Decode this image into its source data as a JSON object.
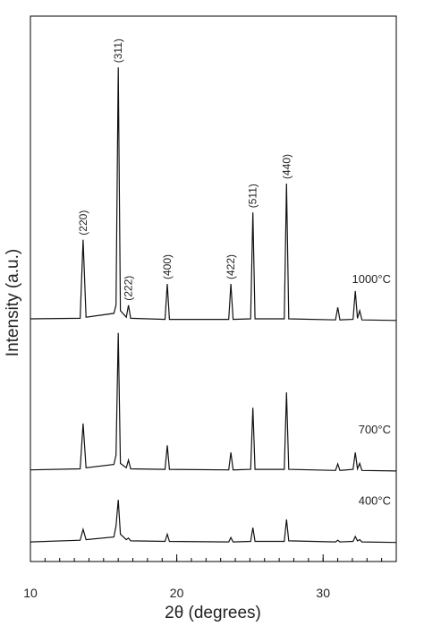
{
  "chart_data": {
    "type": "line",
    "x_label": "2θ (degrees)",
    "y_label": "Intensity (a.u.)",
    "xlim": [
      10,
      35
    ],
    "xticks": [
      10,
      20,
      30
    ],
    "ylim": [
      0,
      100
    ],
    "x": [
      10,
      13.4,
      13.6,
      13.8,
      15.7,
      15.85,
      16.0,
      16.15,
      16.55,
      16.7,
      16.85,
      19.2,
      19.35,
      19.5,
      23.55,
      23.7,
      23.85,
      25.05,
      25.2,
      25.35,
      27.35,
      27.5,
      27.65,
      30.85,
      31.0,
      31.15,
      32.05,
      32.2,
      32.35,
      32.5,
      32.65,
      35
    ],
    "series": [
      {
        "name": "1000°C",
        "color": "#111111",
        "values": [
          44.5,
          44.6,
          59,
          44.8,
          45.5,
          47,
          90.6,
          46,
          44.8,
          47,
          44.6,
          44.4,
          50.9,
          44.4,
          44.4,
          50.9,
          44.4,
          44.5,
          64,
          44.5,
          44.5,
          69.3,
          44.5,
          44.3,
          46.6,
          44.3,
          44.4,
          49.6,
          44.6,
          46,
          44.3,
          44.2
        ]
      },
      {
        "name": "700°C",
        "color": "#111111",
        "values": [
          16.8,
          17,
          25.3,
          17.2,
          17.8,
          19.5,
          41.9,
          18,
          17.2,
          18.6,
          17,
          16.9,
          21.3,
          16.9,
          16.8,
          20,
          16.8,
          16.9,
          28.2,
          16.9,
          16.9,
          31,
          16.9,
          16.7,
          17.9,
          16.7,
          16.9,
          20,
          17,
          18,
          16.7,
          16.6
        ]
      },
      {
        "name": "400°C",
        "color": "#111111",
        "values": [
          3.6,
          3.9,
          5.9,
          4.0,
          4.5,
          6.5,
          11.3,
          5.0,
          4.0,
          4.3,
          3.8,
          3.7,
          5.0,
          3.7,
          3.6,
          4.4,
          3.6,
          3.7,
          6.2,
          3.7,
          3.7,
          7.7,
          3.8,
          3.6,
          3.9,
          3.6,
          3.7,
          4.6,
          3.8,
          4.0,
          3.6,
          3.5
        ]
      }
    ],
    "annotations": [
      {
        "text": "(220)",
        "x": 13.6
      },
      {
        "text": "(311)",
        "x": 16.0
      },
      {
        "text": "(222)",
        "x": 16.7
      },
      {
        "text": "(400)",
        "x": 19.35
      },
      {
        "text": "(422)",
        "x": 23.7
      },
      {
        "text": "(511)",
        "x": 25.2
      },
      {
        "text": "(440)",
        "x": 27.5
      }
    ]
  }
}
